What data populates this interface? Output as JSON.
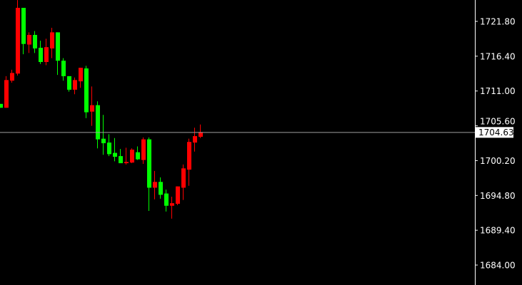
{
  "chart_data": {
    "type": "candlestick",
    "title": "",
    "xlabel": "",
    "ylabel": "",
    "ylim": [
      1683.2,
      1725.1
    ],
    "grid": false,
    "y_ticks": [
      "1721.80",
      "1716.40",
      "1711.00",
      "1705.60",
      "1700.20",
      "1694.80",
      "1689.40",
      "1684.00"
    ],
    "current_price": "1704.63",
    "colors": {
      "background": "#000000",
      "up": "#ff0000",
      "down": "#00ff00",
      "axis": "#ffffff",
      "price_line": "#a0a0a0"
    },
    "candles": [
      {
        "o": 1709.0,
        "h": 1709.0,
        "l": 1708.4,
        "c": 1708.4
      },
      {
        "o": 1708.4,
        "h": 1713.3,
        "l": 1708.4,
        "c": 1712.7
      },
      {
        "o": 1712.6,
        "h": 1714.3,
        "l": 1712.3,
        "c": 1713.8
      },
      {
        "o": 1713.7,
        "h": 1725.1,
        "l": 1713.4,
        "c": 1723.9
      },
      {
        "o": 1723.9,
        "h": 1723.9,
        "l": 1716.7,
        "c": 1718.3
      },
      {
        "o": 1718.2,
        "h": 1720.1,
        "l": 1716.9,
        "c": 1719.7
      },
      {
        "o": 1719.7,
        "h": 1720.3,
        "l": 1716.9,
        "c": 1717.6
      },
      {
        "o": 1717.7,
        "h": 1718.8,
        "l": 1715.2,
        "c": 1715.5
      },
      {
        "o": 1715.5,
        "h": 1719.1,
        "l": 1715.0,
        "c": 1717.8
      },
      {
        "o": 1717.6,
        "h": 1720.8,
        "l": 1716.1,
        "c": 1720.1
      },
      {
        "o": 1720.1,
        "h": 1720.1,
        "l": 1713.5,
        "c": 1715.7
      },
      {
        "o": 1715.7,
        "h": 1716.1,
        "l": 1712.6,
        "c": 1713.3
      },
      {
        "o": 1713.3,
        "h": 1713.3,
        "l": 1710.9,
        "c": 1711.2
      },
      {
        "o": 1711.2,
        "h": 1713.1,
        "l": 1710.5,
        "c": 1712.7
      },
      {
        "o": 1712.5,
        "h": 1714.6,
        "l": 1711.5,
        "c": 1714.6
      },
      {
        "o": 1714.5,
        "h": 1714.9,
        "l": 1706.8,
        "c": 1707.7
      },
      {
        "o": 1707.8,
        "h": 1711.7,
        "l": 1705.6,
        "c": 1708.8
      },
      {
        "o": 1708.8,
        "h": 1709.4,
        "l": 1702.1,
        "c": 1703.5
      },
      {
        "o": 1703.6,
        "h": 1707.3,
        "l": 1701.1,
        "c": 1702.9
      },
      {
        "o": 1703.0,
        "h": 1704.3,
        "l": 1700.9,
        "c": 1701.2
      },
      {
        "o": 1701.4,
        "h": 1703.7,
        "l": 1700.1,
        "c": 1700.8
      },
      {
        "o": 1700.9,
        "h": 1702.0,
        "l": 1699.8,
        "c": 1699.8
      },
      {
        "o": 1699.8,
        "h": 1702.2,
        "l": 1699.6,
        "c": 1700.0
      },
      {
        "o": 1699.9,
        "h": 1702.1,
        "l": 1699.8,
        "c": 1701.9
      },
      {
        "o": 1701.5,
        "h": 1702.4,
        "l": 1700.3,
        "c": 1700.4
      },
      {
        "o": 1700.3,
        "h": 1703.8,
        "l": 1699.7,
        "c": 1703.5
      },
      {
        "o": 1703.5,
        "h": 1703.8,
        "l": 1692.4,
        "c": 1696.0
      },
      {
        "o": 1696.0,
        "h": 1698.6,
        "l": 1694.2,
        "c": 1696.9
      },
      {
        "o": 1696.9,
        "h": 1697.6,
        "l": 1694.3,
        "c": 1694.9
      },
      {
        "o": 1695.1,
        "h": 1695.7,
        "l": 1692.3,
        "c": 1693.2
      },
      {
        "o": 1693.2,
        "h": 1694.6,
        "l": 1691.2,
        "c": 1693.6
      },
      {
        "o": 1693.5,
        "h": 1696.2,
        "l": 1693.3,
        "c": 1696.2
      },
      {
        "o": 1696.0,
        "h": 1699.6,
        "l": 1694.1,
        "c": 1699.0
      },
      {
        "o": 1698.8,
        "h": 1703.6,
        "l": 1696.3,
        "c": 1703.1
      },
      {
        "o": 1703.0,
        "h": 1705.3,
        "l": 1701.6,
        "c": 1704.0
      },
      {
        "o": 1703.9,
        "h": 1705.8,
        "l": 1703.7,
        "c": 1704.63
      }
    ]
  }
}
